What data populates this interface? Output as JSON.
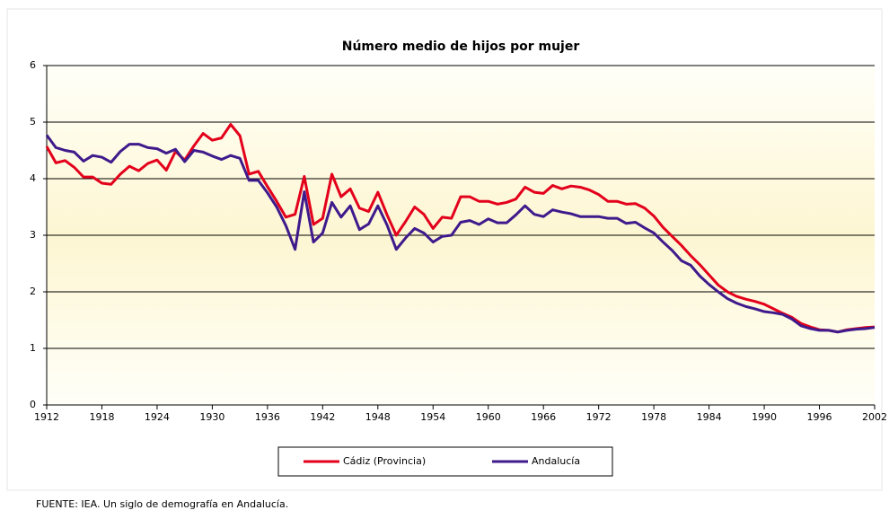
{
  "chart_data": {
    "type": "line",
    "title": "Número medio de hijos por mujer",
    "x": [
      1912,
      1913,
      1914,
      1915,
      1916,
      1917,
      1918,
      1919,
      1920,
      1921,
      1922,
      1923,
      1924,
      1925,
      1926,
      1927,
      1928,
      1929,
      1930,
      1931,
      1932,
      1933,
      1934,
      1935,
      1936,
      1937,
      1938,
      1939,
      1940,
      1941,
      1942,
      1943,
      1944,
      1945,
      1946,
      1947,
      1948,
      1949,
      1950,
      1951,
      1952,
      1953,
      1954,
      1955,
      1956,
      1957,
      1958,
      1959,
      1960,
      1961,
      1962,
      1963,
      1964,
      1965,
      1966,
      1967,
      1968,
      1969,
      1970,
      1971,
      1972,
      1973,
      1974,
      1975,
      1976,
      1977,
      1978,
      1979,
      1980,
      1981,
      1982,
      1983,
      1984,
      1985,
      1986,
      1987,
      1988,
      1989,
      1990,
      1991,
      1992,
      1993,
      1994,
      1995,
      1996,
      1997,
      1998,
      1999,
      2000,
      2001,
      2002
    ],
    "series": [
      {
        "name": "Cádiz (Provincia)",
        "color": "#e3001b",
        "values": [
          4.57,
          4.28,
          4.32,
          4.2,
          4.03,
          4.03,
          3.92,
          3.9,
          4.08,
          4.22,
          4.14,
          4.27,
          4.33,
          4.15,
          4.48,
          4.33,
          4.58,
          4.8,
          4.68,
          4.72,
          4.96,
          4.76,
          4.08,
          4.13,
          3.86,
          3.6,
          3.32,
          3.37,
          4.04,
          3.19,
          3.3,
          4.08,
          3.68,
          3.82,
          3.48,
          3.42,
          3.76,
          3.36,
          3.0,
          3.24,
          3.5,
          3.37,
          3.12,
          3.32,
          3.3,
          3.68,
          3.68,
          3.6,
          3.6,
          3.55,
          3.58,
          3.64,
          3.85,
          3.76,
          3.74,
          3.88,
          3.82,
          3.87,
          3.85,
          3.8,
          3.72,
          3.6,
          3.6,
          3.55,
          3.56,
          3.48,
          3.34,
          3.14,
          2.98,
          2.82,
          2.64,
          2.48,
          2.3,
          2.12,
          2.0,
          1.92,
          1.87,
          1.83,
          1.78,
          1.7,
          1.62,
          1.55,
          1.44,
          1.38,
          1.33,
          1.32,
          1.29,
          1.33,
          1.35,
          1.37,
          1.38
        ]
      },
      {
        "name": "Andalucía",
        "color": "#3f1a8c",
        "values": [
          4.77,
          4.55,
          4.5,
          4.47,
          4.31,
          4.41,
          4.38,
          4.29,
          4.48,
          4.61,
          4.61,
          4.55,
          4.53,
          4.45,
          4.52,
          4.3,
          4.5,
          4.47,
          4.4,
          4.34,
          4.41,
          4.36,
          3.97,
          3.97,
          3.75,
          3.5,
          3.17,
          2.75,
          3.77,
          2.88,
          3.04,
          3.58,
          3.32,
          3.52,
          3.1,
          3.2,
          3.52,
          3.18,
          2.75,
          2.95,
          3.12,
          3.04,
          2.88,
          2.98,
          3.0,
          3.23,
          3.26,
          3.19,
          3.29,
          3.22,
          3.22,
          3.36,
          3.52,
          3.37,
          3.33,
          3.45,
          3.41,
          3.38,
          3.33,
          3.33,
          3.33,
          3.3,
          3.3,
          3.21,
          3.23,
          3.13,
          3.04,
          2.88,
          2.73,
          2.55,
          2.47,
          2.28,
          2.13,
          2.0,
          1.88,
          1.8,
          1.74,
          1.7,
          1.65,
          1.63,
          1.6,
          1.52,
          1.4,
          1.35,
          1.32,
          1.32,
          1.29,
          1.32,
          1.34,
          1.35,
          1.37
        ]
      }
    ],
    "xlim": [
      1912,
      2002
    ],
    "xticks": [
      1912,
      1918,
      1924,
      1930,
      1936,
      1942,
      1948,
      1954,
      1960,
      1966,
      1972,
      1978,
      1984,
      1990,
      1996,
      2002
    ],
    "ylim": [
      0,
      6
    ],
    "yticks": [
      0,
      1,
      2,
      3,
      4,
      5,
      6
    ],
    "grid": true,
    "legend": "bottom"
  },
  "footer": "FUENTE: IEA. Un siglo de demografía en Andalucía."
}
